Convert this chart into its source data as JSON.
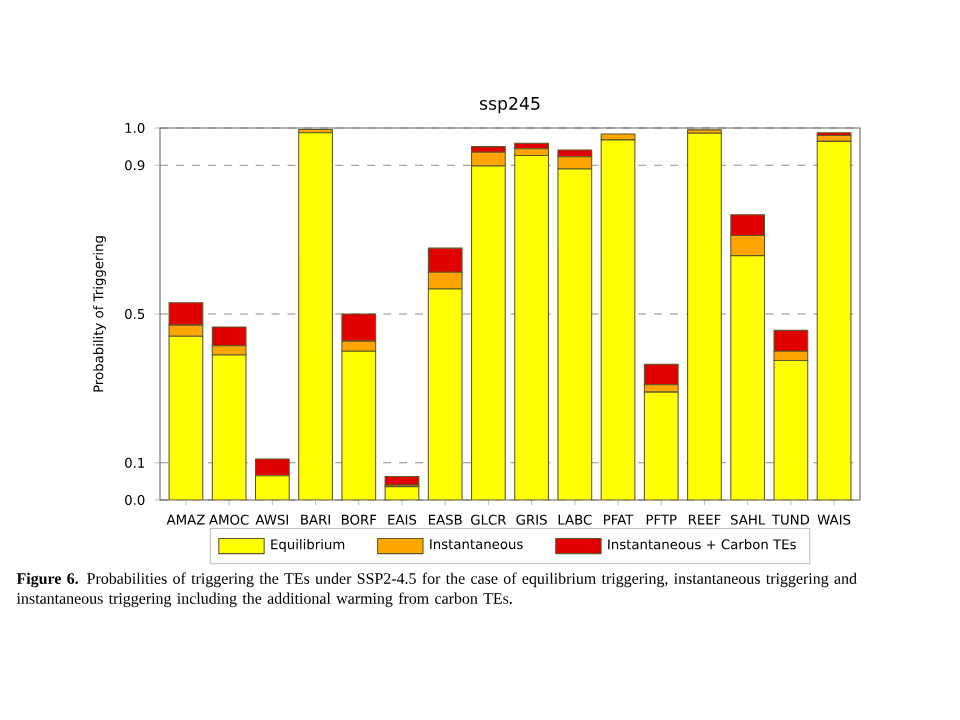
{
  "chart_data": {
    "type": "bar",
    "stacked": true,
    "title": "ssp245",
    "ylabel": "Probability of Triggering",
    "categories": [
      "AMAZ",
      "AMOC",
      "AWSI",
      "BARI",
      "BORF",
      "EAIS",
      "EASB",
      "GLCR",
      "GRIS",
      "LABC",
      "PFAT",
      "PFTP",
      "REEF",
      "SAHL",
      "TUND",
      "WAIS"
    ],
    "series": [
      {
        "name": "Equilibrium",
        "color": "#ffff00",
        "values": [
          0.44,
          0.39,
          0.065,
          0.987,
          0.4,
          0.036,
          0.567,
          0.898,
          0.926,
          0.89,
          0.968,
          0.29,
          0.986,
          0.657,
          0.375,
          0.964
        ]
      },
      {
        "name": "Instantaneous",
        "color": "#ffa500",
        "values": [
          0.03,
          0.025,
          0.0,
          0.009,
          0.027,
          0.004,
          0.045,
          0.037,
          0.018,
          0.033,
          0.016,
          0.02,
          0.009,
          0.054,
          0.025,
          0.016
        ]
      },
      {
        "name": "Instantaneous + Carbon TEs",
        "color": "#e00000",
        "values": [
          0.06,
          0.05,
          0.045,
          0.0,
          0.073,
          0.023,
          0.065,
          0.015,
          0.015,
          0.018,
          0.0,
          0.055,
          null,
          0.056,
          0.056,
          0.007
        ]
      }
    ],
    "ylim": [
      0,
      1
    ],
    "yticks": [
      {
        "value": 0,
        "label": "0.0"
      },
      0.1,
      0.5,
      0.9,
      {
        "value": 1,
        "label": "1.0"
      }
    ],
    "grid": "y",
    "legend": "bottom",
    "annotations": [
      "**Figure 6.** Probabilities of triggering the TEs under SSP2-4.5 for the case of equilibrium triggering, instantaneous triggering and instantaneous triggering including the additional warming from carbon TEs."
    ]
  }
}
